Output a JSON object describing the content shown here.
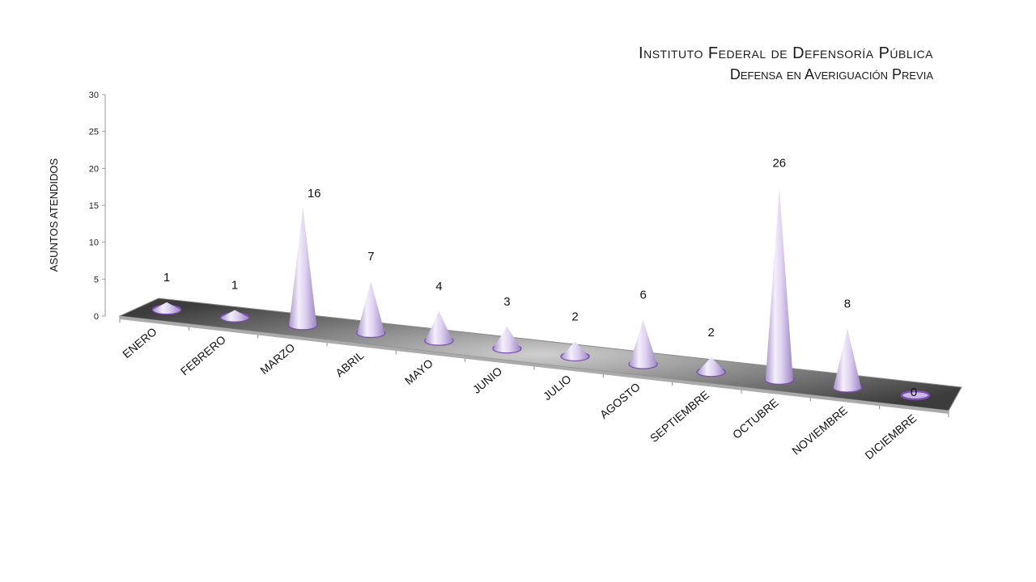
{
  "chart_data": {
    "type": "bar",
    "title": "Instituto Federal de Defensoría Pública",
    "subtitle": "Defensa en Averiguación Previa",
    "ylabel": "ASUNTOS ATENDIDOS",
    "ylim": [
      0,
      30
    ],
    "yticks": [
      "0",
      "5",
      "10",
      "15",
      "20",
      "25",
      "30"
    ],
    "categories": [
      "ENERO",
      "FEBRERO",
      "MARZO",
      "ABRIL",
      "MAYO",
      "JUNIO",
      "JULIO",
      "AGOSTO",
      "SEPTIEMBRE",
      "OCTUBRE",
      "NOVIEMBRE",
      "DICIEMBRE"
    ],
    "values": [
      1,
      1,
      16,
      7,
      4,
      3,
      2,
      6,
      2,
      26,
      8,
      0
    ],
    "colors": {
      "cone": "#d7c8ec",
      "cone_edge": "#7b4fb0",
      "floor": "#6e6e6e"
    }
  }
}
